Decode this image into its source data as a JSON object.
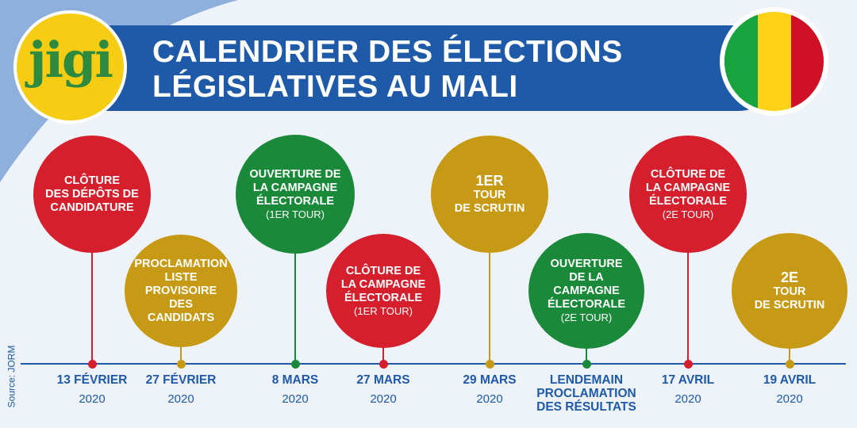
{
  "header": {
    "title_line1": "CALENDRIER DES ÉLECTIONS",
    "title_line2": "LÉGISLATIVES AU MALI",
    "logo_text": "jigi"
  },
  "colors": {
    "red": "#d51f2d",
    "gold": "#c79a15",
    "green": "#1a8a3a",
    "blue": "#1e5aa8",
    "yellow": "#f6cd13"
  },
  "flag": [
    "#17a33e",
    "#fcd116",
    "#ce1126"
  ],
  "source": "Source: JORM",
  "events": [
    {
      "label": "CLÔTURE\nDES DÉPÔTS DE\nCANDIDATURE",
      "sub": "",
      "big": "",
      "color": "red",
      "date": "13 FÉVRIER",
      "year": "2020"
    },
    {
      "label": "PROCLAMATION\nLISTE\nPROVISOIRE DES\nCANDIDATS",
      "sub": "",
      "big": "",
      "color": "gold",
      "date": "27 FÉVRIER",
      "year": "2020"
    },
    {
      "label": "OUVERTURE DE\nLA CAMPAGNE\nÉLECTORALE",
      "sub": "(1ER TOUR)",
      "big": "",
      "color": "green",
      "date": "8 MARS",
      "year": "2020"
    },
    {
      "label": "CLÔTURE DE\nLA CAMPAGNE\nÉLECTORALE",
      "sub": "(1ER TOUR)",
      "big": "",
      "color": "red",
      "date": "27 MARS",
      "year": "2020"
    },
    {
      "label": "TOUR\nDE SCRUTIN",
      "sub": "",
      "big": "1ER",
      "color": "gold",
      "date": "29 MARS",
      "year": "2020"
    },
    {
      "label": "OUVERTURE\nDE LA CAMPAGNE\nÉLECTORALE",
      "sub": "(2E TOUR)",
      "big": "",
      "color": "green",
      "date": "LENDEMAIN\nPROCLAMATION\nDES RÉSULTATS",
      "year": ""
    },
    {
      "label": "CLÔTURE DE\nLA CAMPAGNE\nÉLECTORALE",
      "sub": "(2E TOUR)",
      "big": "",
      "color": "red",
      "date": "17 AVRIL",
      "year": "2020"
    },
    {
      "label": "TOUR\nDE SCRUTIN",
      "sub": "",
      "big": "2E",
      "color": "gold",
      "date": "19 AVRIL",
      "year": "2020"
    }
  ]
}
